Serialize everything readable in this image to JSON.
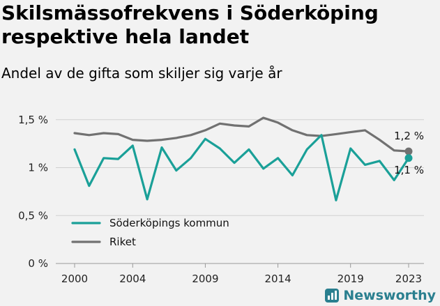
{
  "header": {
    "title": "Skilsmässofrekvens i Söderköping respektive hela landet",
    "subtitle": "Andel av de gifta som skiljer sig varje år"
  },
  "brand": {
    "name": "Newsworthy",
    "color": "#2a7f8f"
  },
  "colors": {
    "soderkoping": "#1aa098",
    "riket": "#717171",
    "grid": "#cfcfcf",
    "background": "#f2f2f2"
  },
  "chart_data": {
    "type": "line",
    "title": "Skilsmässofrekvens i Söderköping respektive hela landet",
    "subtitle": "Andel av de gifta som skiljer sig varje år",
    "xlabel": "",
    "ylabel": "",
    "x": [
      2000,
      2001,
      2002,
      2003,
      2004,
      2005,
      2006,
      2007,
      2008,
      2009,
      2010,
      2011,
      2012,
      2013,
      2014,
      2015,
      2016,
      2017,
      2018,
      2019,
      2020,
      2021,
      2022,
      2023
    ],
    "xticks": [
      2000,
      2004,
      2009,
      2014,
      2019,
      2023
    ],
    "xtick_labels": [
      "2000",
      "2004",
      "2009",
      "2014",
      "2019",
      "2023"
    ],
    "ylim": [
      0,
      1.6
    ],
    "yticks": [
      0,
      0.5,
      1,
      1.5
    ],
    "ytick_labels": [
      "0 %",
      "0,5 %",
      "1 %",
      "1,5 %"
    ],
    "grid": "horizontal",
    "legend_position": "bottom-left",
    "series": [
      {
        "name": "Söderköpings kommun",
        "color": "#1aa098",
        "values": [
          1.19,
          0.81,
          1.1,
          1.09,
          1.23,
          0.67,
          1.21,
          0.97,
          1.1,
          1.3,
          1.2,
          1.05,
          1.19,
          0.99,
          1.1,
          0.92,
          1.19,
          1.34,
          0.66,
          1.2,
          1.03,
          1.07,
          0.87,
          1.1
        ],
        "end_label": "1,1 %"
      },
      {
        "name": "Riket",
        "color": "#717171",
        "values": [
          1.36,
          1.34,
          1.36,
          1.35,
          1.29,
          1.28,
          1.29,
          1.31,
          1.34,
          1.39,
          1.46,
          1.44,
          1.43,
          1.52,
          1.47,
          1.39,
          1.34,
          1.33,
          1.35,
          1.37,
          1.39,
          1.29,
          1.18,
          1.17
        ],
        "end_label": "1,2 %"
      }
    ]
  }
}
